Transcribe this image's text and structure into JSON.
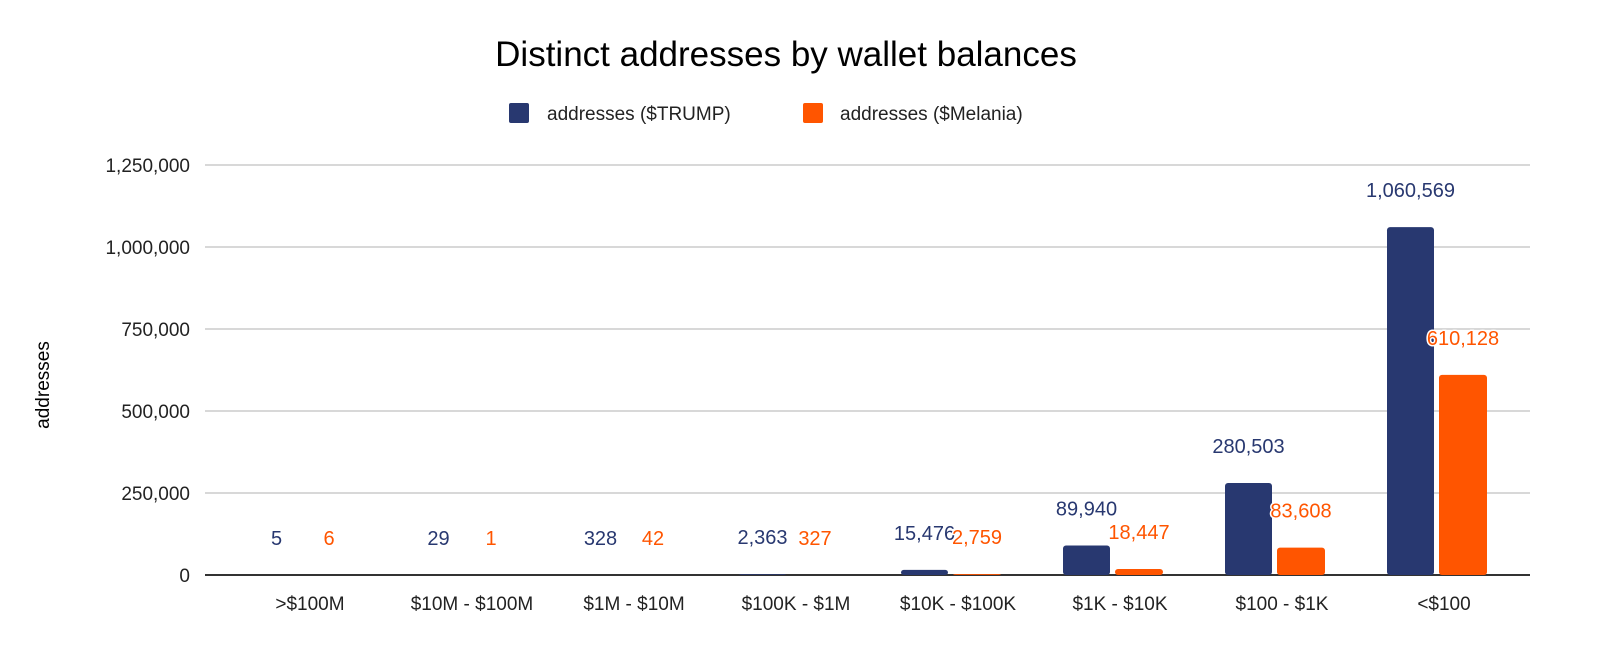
{
  "chart_data": {
    "type": "bar",
    "title": "Distinct addresses by wallet balances",
    "xlabel": "",
    "ylabel": "addresses",
    "ylim": [
      0,
      1250000
    ],
    "yticks": [
      0,
      250000,
      500000,
      750000,
      1000000,
      1250000
    ],
    "ytick_labels": [
      "0",
      "250,000",
      "500,000",
      "750,000",
      "1,000,000",
      "1,250,000"
    ],
    "grid": true,
    "legend_position": "top-center",
    "categories": [
      ">$100M",
      "$10M - $100M",
      "$1M - $10M",
      "$100K - $1M",
      "$10K - $100K",
      "$1K - $10K",
      "$100 - $1K",
      "<$100"
    ],
    "series": [
      {
        "name": "addresses ($TRUMP)",
        "color": "#283870",
        "values": [
          5,
          29,
          328,
          2363,
          15476,
          89940,
          280503,
          1060569
        ],
        "labels": [
          "5",
          "29",
          "328",
          "2,363",
          "15,476",
          "89,940",
          "280,503",
          "1,060,569"
        ]
      },
      {
        "name": "addresses ($Melania)",
        "color": "#ff5500",
        "values": [
          6,
          1,
          42,
          327,
          2759,
          18447,
          83608,
          610128
        ],
        "labels": [
          "6",
          "1",
          "42",
          "327",
          "2,759",
          "18,447",
          "83,608",
          "610,128"
        ]
      }
    ]
  }
}
